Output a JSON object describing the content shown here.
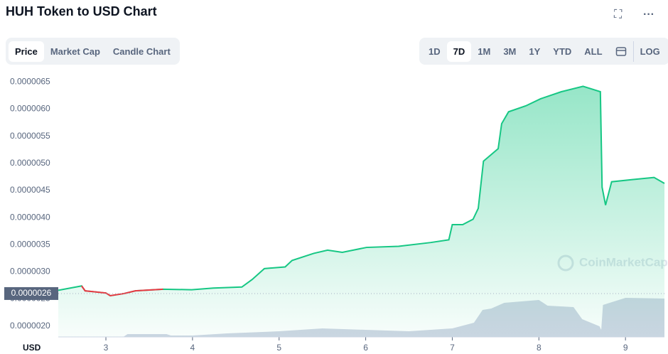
{
  "header": {
    "title": "HUH Token to USD Chart",
    "tabs": [
      "Price",
      "Market Cap",
      "Candle Chart"
    ],
    "ranges": [
      "1D",
      "7D",
      "1M",
      "3M",
      "1Y",
      "YTD",
      "ALL"
    ],
    "log": "LOG"
  },
  "chart_data": {
    "type": "line",
    "color": "#16c784",
    "down_color": "#ea3943",
    "grid": false,
    "x": [
      2.45,
      2.72,
      2.76,
      3.0,
      3.05,
      3.21,
      3.34,
      3.66,
      3.99,
      4.24,
      4.57,
      4.69,
      4.83,
      5.07,
      5.15,
      5.4,
      5.56,
      5.73,
      6.01,
      6.38,
      6.75,
      6.96,
      7.0,
      7.12,
      7.24,
      7.3,
      7.36,
      7.53,
      7.57,
      7.65,
      7.85,
      8.02,
      8.26,
      8.51,
      8.71,
      8.73,
      8.77,
      8.84,
      9.08,
      9.33,
      9.45
    ],
    "values": [
      2.66e-06,
      2.74e-06,
      2.65e-06,
      2.61e-06,
      2.56e-06,
      2.6e-06,
      2.65e-06,
      2.68e-06,
      2.67e-06,
      2.7e-06,
      2.72e-06,
      2.86e-06,
      3.06e-06,
      3.09e-06,
      3.21e-06,
      3.34e-06,
      3.4e-06,
      3.36e-06,
      3.45e-06,
      3.47e-06,
      3.54e-06,
      3.59e-06,
      3.87e-06,
      3.87e-06,
      3.97e-06,
      4.17e-06,
      5.04e-06,
      5.27e-06,
      5.73e-06,
      5.95e-06,
      6.06e-06,
      6.19e-06,
      6.32e-06,
      6.42e-06,
      6.32e-06,
      4.56e-06,
      4.23e-06,
      4.66e-06,
      4.7e-06,
      4.74e-06,
      4.63e-06
    ],
    "xlim": [
      2.45,
      9.45
    ],
    "xticks": [
      3,
      4,
      5,
      6,
      7,
      8,
      9
    ],
    "ylim": [
      1.8e-06,
      6.7e-06
    ],
    "yticks": [
      {
        "value": 2e-06,
        "label": "0.0000020"
      },
      {
        "value": 2.5e-06,
        "label": "0.0000025"
      },
      {
        "value": 3e-06,
        "label": "0.0000030"
      },
      {
        "value": 3.5e-06,
        "label": "0.0000035"
      },
      {
        "value": 4e-06,
        "label": "0.0000040"
      },
      {
        "value": 4.5e-06,
        "label": "0.0000045"
      },
      {
        "value": 5e-06,
        "label": "0.0000050"
      },
      {
        "value": 5.5e-06,
        "label": "0.0000055"
      },
      {
        "value": 6e-06,
        "label": "0.0000060"
      },
      {
        "value": 6.5e-06,
        "label": "0.0000065"
      }
    ],
    "current_price": {
      "value": 2.6e-06,
      "label": "0.0000026"
    },
    "x_label": "USD",
    "watermark": "CoinMarketCap",
    "volume": {
      "color": "#cfd6e4",
      "ylim": [
        0,
        100
      ],
      "x": [
        2.45,
        3.2,
        3.25,
        3.7,
        3.75,
        4.0,
        4.4,
        5.0,
        5.5,
        6.0,
        6.5,
        7.0,
        7.25,
        7.35,
        7.45,
        7.6,
        8.0,
        8.1,
        8.4,
        8.5,
        8.7,
        8.72,
        8.74,
        9.0,
        9.45
      ],
      "values": [
        0,
        0,
        4,
        4,
        2,
        2,
        5,
        8,
        12,
        10,
        8,
        12,
        20,
        38,
        40,
        48,
        52,
        44,
        42,
        25,
        15,
        10,
        45,
        55,
        54
      ]
    }
  }
}
